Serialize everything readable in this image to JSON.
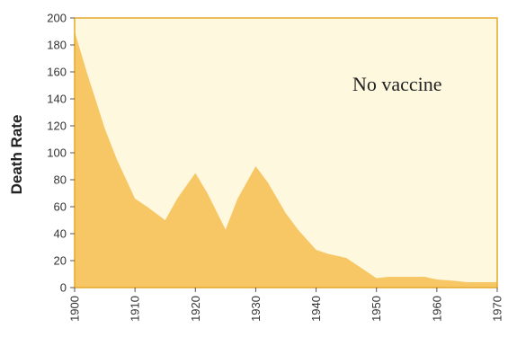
{
  "chart_data": {
    "type": "area",
    "title": "",
    "xlabel": "",
    "ylabel": "Death Rate",
    "xlim": [
      1900,
      1970
    ],
    "ylim": [
      0,
      200
    ],
    "xticks": [
      "1900",
      "1910",
      "1920",
      "1930",
      "1940",
      "1950",
      "1960",
      "1970"
    ],
    "yticks": [
      "0",
      "20",
      "40",
      "60",
      "80",
      "100",
      "120",
      "140",
      "160",
      "180",
      "200"
    ],
    "annotation": "No vaccine",
    "grid": false,
    "colors": {
      "fill": "#F7C766",
      "plot_bg": "#FEF8DE",
      "frame": "#E5A92E"
    },
    "series": [
      {
        "x": [
          1900,
          1902,
          1905,
          1907,
          1910,
          1912,
          1915,
          1917,
          1920,
          1922,
          1925,
          1927,
          1930,
          1932,
          1935,
          1937,
          1940,
          1942,
          1945,
          1947,
          1950,
          1952,
          1955,
          1958,
          1960,
          1963,
          1965,
          1970
        ],
        "values": [
          190,
          160,
          118,
          95,
          66,
          60,
          50,
          66,
          85,
          70,
          43,
          66,
          90,
          78,
          55,
          43,
          28,
          25,
          22,
          16,
          7,
          8,
          8,
          8,
          6,
          5,
          4,
          4
        ]
      }
    ]
  }
}
